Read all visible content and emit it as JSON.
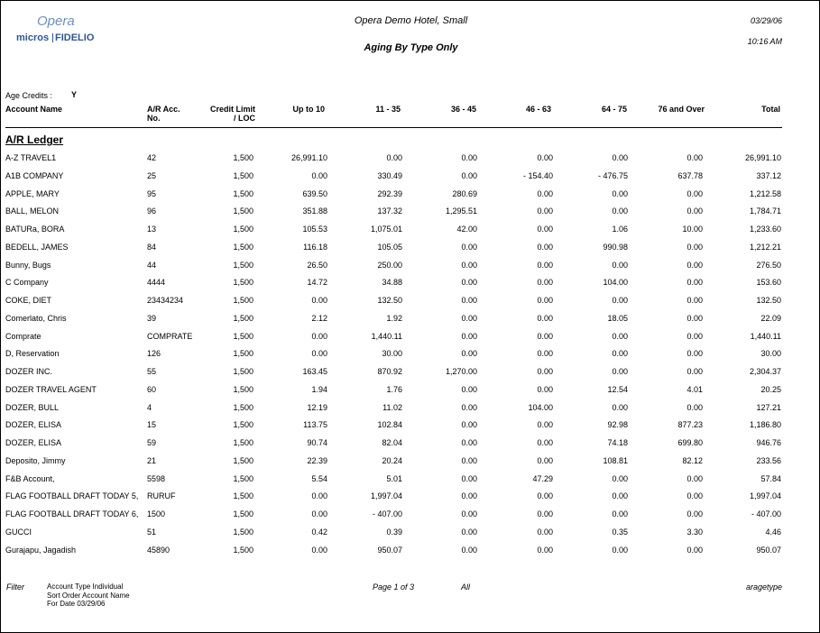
{
  "logo": {
    "opera": "Opera",
    "micros": "micros",
    "fidelio": "FIDELIO"
  },
  "header": {
    "hotel": "Opera Demo Hotel, Small",
    "date": "03/29/06",
    "time": "10:16 AM",
    "title": "Aging By Type Only"
  },
  "age_credits": {
    "label": "Age Credits :",
    "value": "Y"
  },
  "table": {
    "columns": [
      [
        "Account Name"
      ],
      [
        "A/R Acc.",
        "No."
      ],
      [
        "Credit Limit",
        "/ LOC"
      ],
      [
        "Up to 10"
      ],
      [
        "11 - 35"
      ],
      [
        "36 - 45"
      ],
      [
        "46 - 63"
      ],
      [
        "64 - 75"
      ],
      [
        "76 and Over"
      ],
      [
        "Total"
      ]
    ],
    "section": "A/R Ledger",
    "rows": [
      [
        "A-Z TRAVEL1",
        "42",
        "1,500",
        "26,991.10",
        "0.00",
        "0.00",
        "0.00",
        "0.00",
        "0.00",
        "26,991.10"
      ],
      [
        "A1B COMPANY",
        "25",
        "1,500",
        "0.00",
        "330.49",
        "0.00",
        "- 154.40",
        "- 476.75",
        "637.78",
        "337.12"
      ],
      [
        "APPLE, MARY",
        "95",
        "1,500",
        "639.50",
        "292.39",
        "280.69",
        "0.00",
        "0.00",
        "0.00",
        "1,212.58"
      ],
      [
        "BALL, MELON",
        "96",
        "1,500",
        "351.88",
        "137.32",
        "1,295.51",
        "0.00",
        "0.00",
        "0.00",
        "1,784.71"
      ],
      [
        "BATURa, BORA",
        "13",
        "1,500",
        "105.53",
        "1,075.01",
        "42.00",
        "0.00",
        "1.06",
        "10.00",
        "1,233.60"
      ],
      [
        "BEDELL, JAMES",
        "84",
        "1,500",
        "116.18",
        "105.05",
        "0.00",
        "0.00",
        "990.98",
        "0.00",
        "1,212.21"
      ],
      [
        "Bunny, Bugs",
        "44",
        "1,500",
        "26.50",
        "250.00",
        "0.00",
        "0.00",
        "0.00",
        "0.00",
        "276.50"
      ],
      [
        "C Company",
        "4444",
        "1,500",
        "14.72",
        "34.88",
        "0.00",
        "0.00",
        "104.00",
        "0.00",
        "153.60"
      ],
      [
        "COKE, DIET",
        "23434234",
        "1,500",
        "0.00",
        "132.50",
        "0.00",
        "0.00",
        "0.00",
        "0.00",
        "132.50"
      ],
      [
        "Comerlato, Chris",
        "39",
        "1,500",
        "2.12",
        "1.92",
        "0.00",
        "0.00",
        "18.05",
        "0.00",
        "22.09"
      ],
      [
        "Comprate",
        "COMPRATE",
        "1,500",
        "0.00",
        "1,440.11",
        "0.00",
        "0.00",
        "0.00",
        "0.00",
        "1,440.11"
      ],
      [
        "D, Reservation",
        "126",
        "1,500",
        "0.00",
        "30.00",
        "0.00",
        "0.00",
        "0.00",
        "0.00",
        "30.00"
      ],
      [
        "DOZER INC.",
        "55",
        "1,500",
        "163.45",
        "870.92",
        "1,270.00",
        "0.00",
        "0.00",
        "0.00",
        "2,304.37"
      ],
      [
        "DOZER TRAVEL AGENT",
        "60",
        "1,500",
        "1.94",
        "1.76",
        "0.00",
        "0.00",
        "12.54",
        "4.01",
        "20.25"
      ],
      [
        "DOZER, BULL",
        "4",
        "1,500",
        "12.19",
        "11.02",
        "0.00",
        "104.00",
        "0.00",
        "0.00",
        "127.21"
      ],
      [
        "DOZER, ELISA",
        "15",
        "1,500",
        "113.75",
        "102.84",
        "0.00",
        "0.00",
        "92.98",
        "877.23",
        "1,186.80"
      ],
      [
        "DOZER, ELISA",
        "59",
        "1,500",
        "90.74",
        "82.04",
        "0.00",
        "0.00",
        "74.18",
        "699.80",
        "946.76"
      ],
      [
        "Deposito, Jimmy",
        "21",
        "1,500",
        "22.39",
        "20.24",
        "0.00",
        "0.00",
        "108.81",
        "82.12",
        "233.56"
      ],
      [
        "F&B Account,",
        "5598",
        "1,500",
        "5.54",
        "5.01",
        "0.00",
        "47.29",
        "0.00",
        "0.00",
        "57.84"
      ],
      [
        "FLAG FOOTBALL DRAFT TODAY 5,",
        "RURUF",
        "1,500",
        "0.00",
        "1,997.04",
        "0.00",
        "0.00",
        "0.00",
        "0.00",
        "1,997.04"
      ],
      [
        "FLAG FOOTBALL DRAFT TODAY 6,",
        "1500",
        "1,500",
        "0.00",
        "- 407.00",
        "0.00",
        "0.00",
        "0.00",
        "0.00",
        "- 407.00"
      ],
      [
        "GUCCI",
        "51",
        "1,500",
        "0.42",
        "0.39",
        "0.00",
        "0.00",
        "0.35",
        "3.30",
        "4.46"
      ],
      [
        "Gurajapu, Jagadish",
        "45890",
        "1,500",
        "0.00",
        "950.07",
        "0.00",
        "0.00",
        "0.00",
        "0.00",
        "950.07"
      ]
    ]
  },
  "footer": {
    "filter_label": "Filter",
    "filters": [
      "Account Type Individual",
      "Sort Order Account Name",
      "For Date 03/29/06"
    ],
    "page": "Page 1 of 3",
    "scope": "All",
    "report": "aragetype"
  }
}
